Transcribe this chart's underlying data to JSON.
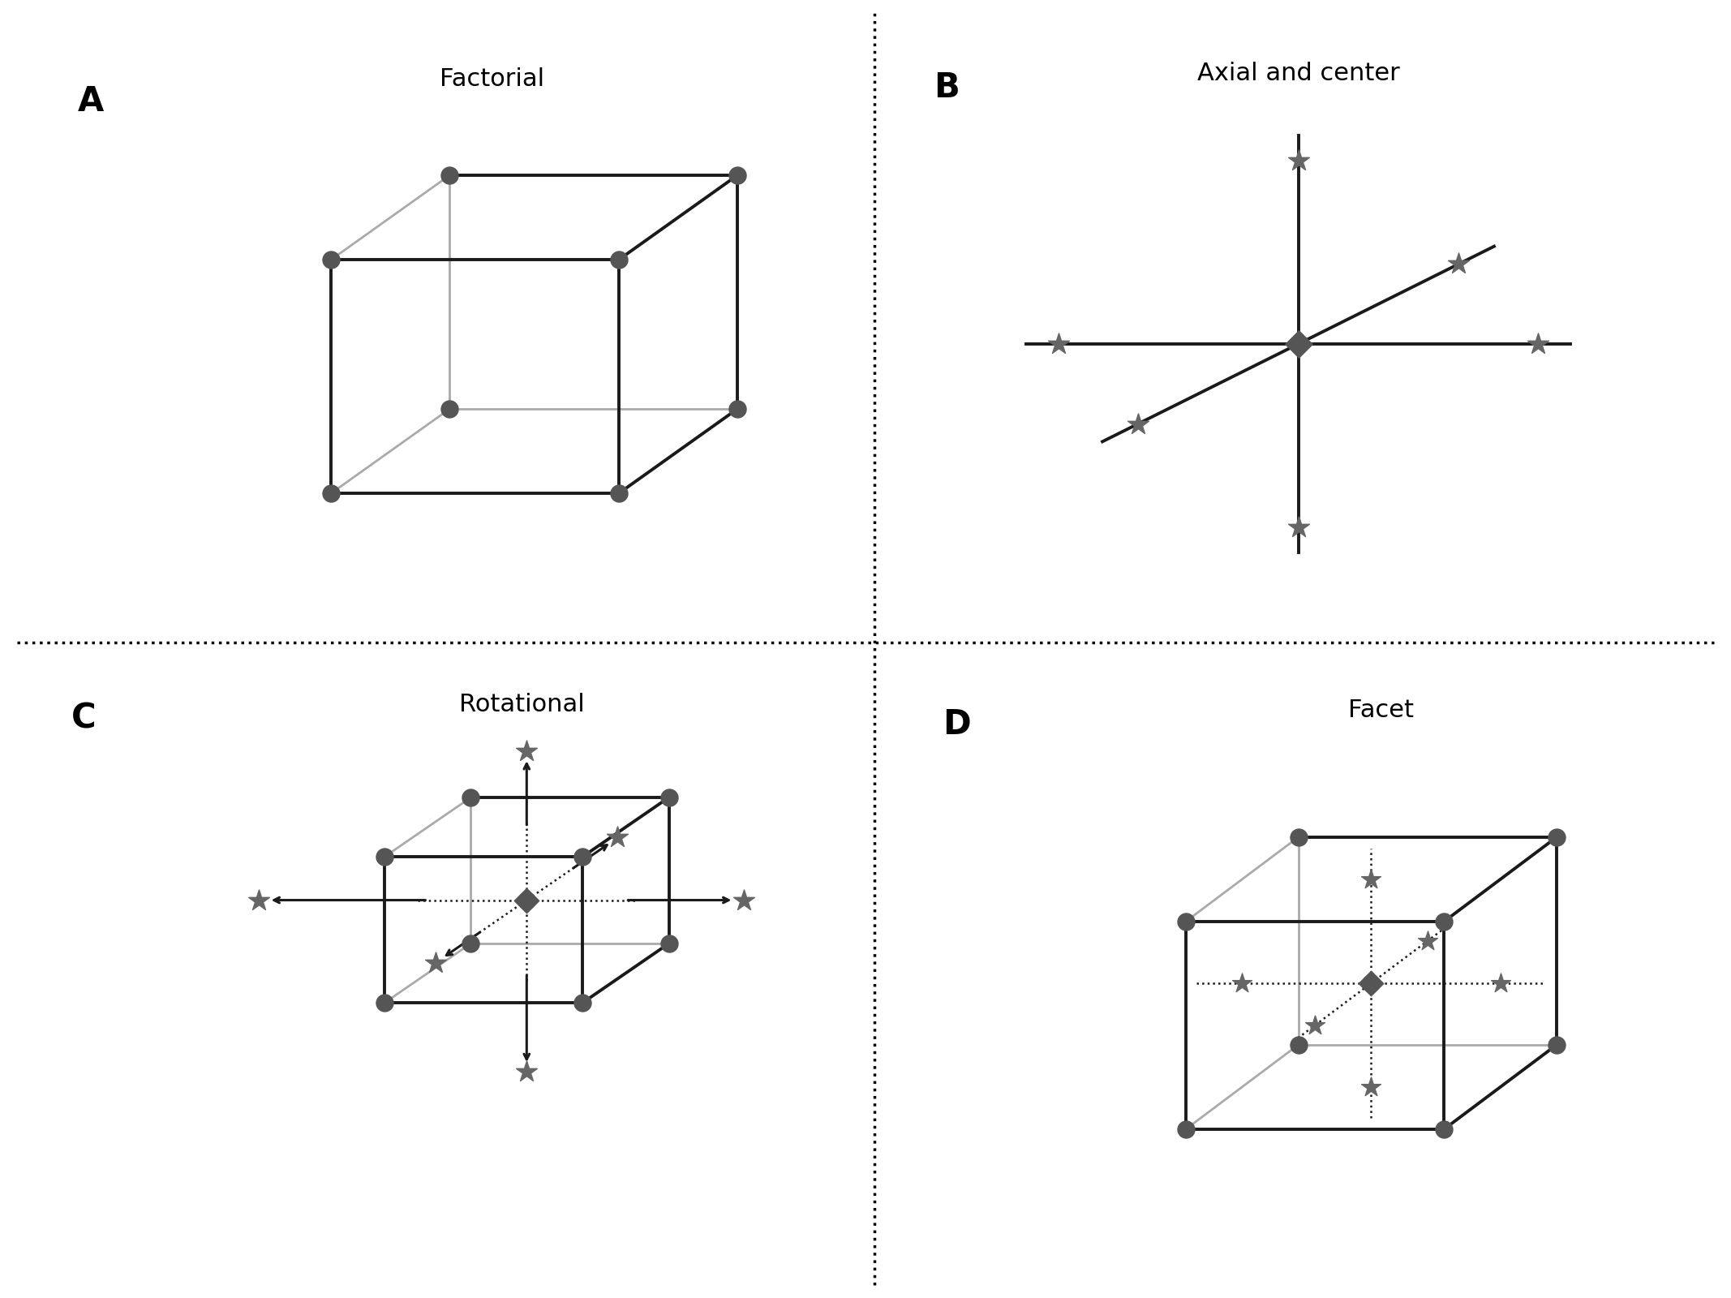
{
  "point_color": "#555555",
  "line_dark": "#1a1a1a",
  "line_gray": "#aaaaaa",
  "star_color": "#666666",
  "diamond_color": "#555555",
  "title_fontsize": 22,
  "label_fontsize": 30,
  "background": "#ffffff",
  "panel_titles": [
    "Factorial",
    "Axial and center",
    "Rotational",
    "Facet"
  ],
  "panel_labels": [
    "A",
    "B",
    "C",
    "D"
  ],
  "dot_size": 260,
  "star_size": 380,
  "diamond_size": 240
}
